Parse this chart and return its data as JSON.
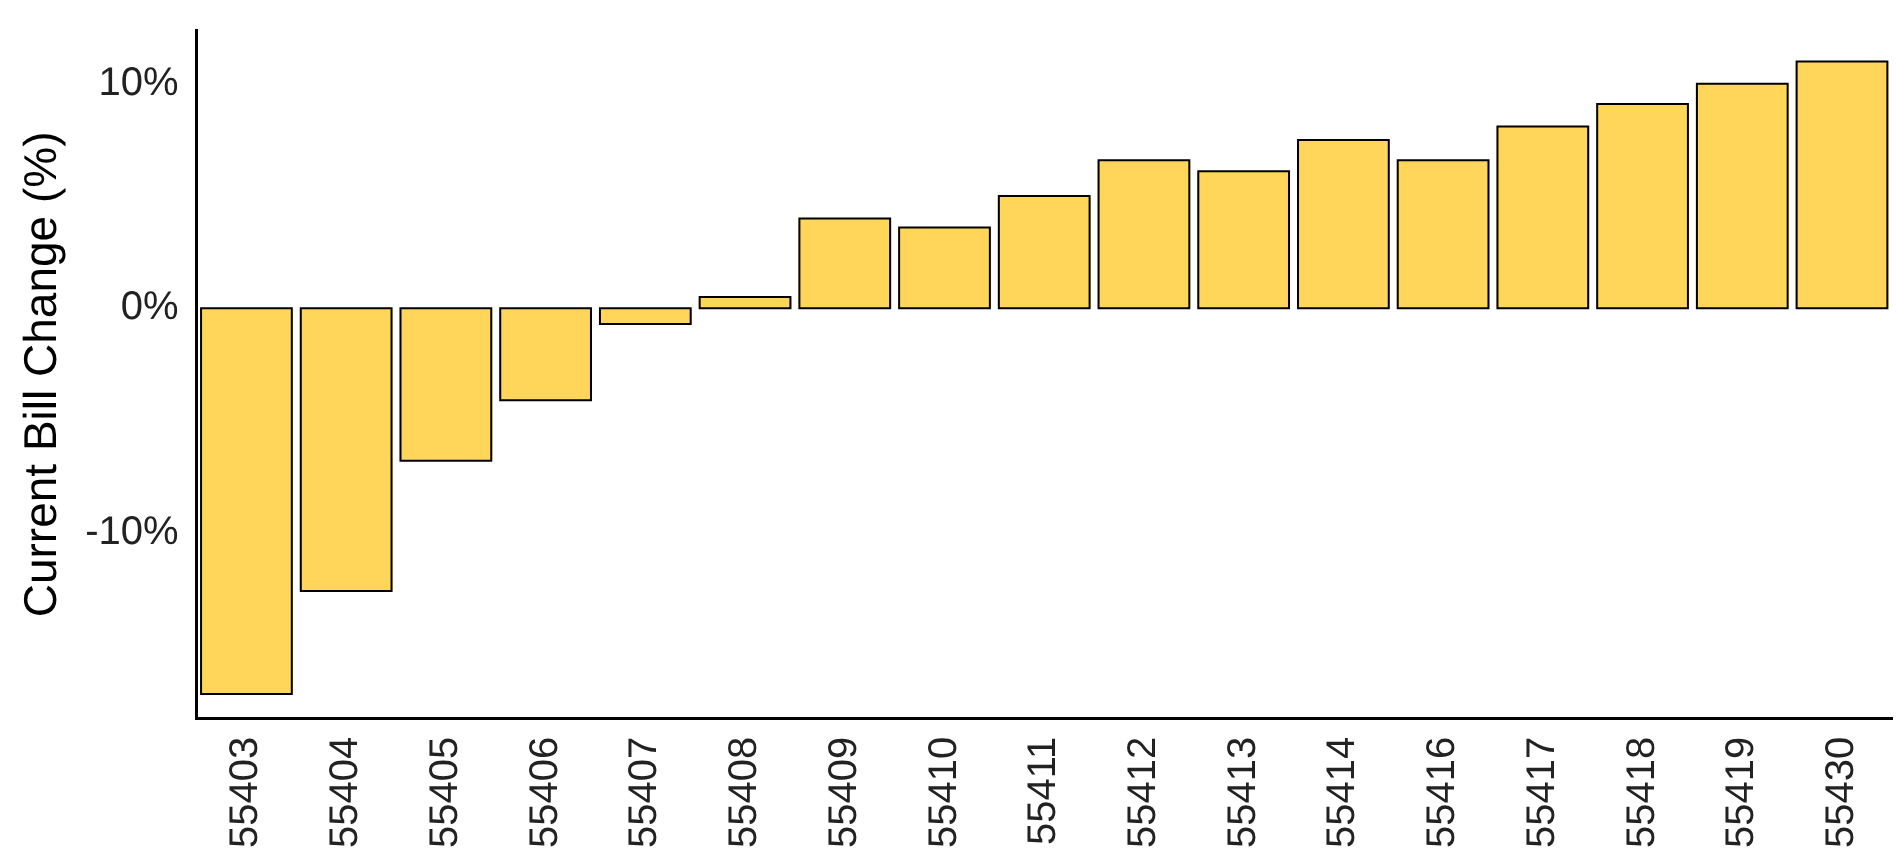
{
  "chart_data": {
    "type": "bar",
    "ylabel": "Current Bill Change (%)",
    "categories": [
      "55403",
      "55404",
      "55405",
      "55406",
      "55407",
      "55408",
      "55409",
      "55410",
      "55411",
      "55412",
      "55413",
      "55414",
      "55416",
      "55417",
      "55418",
      "55419",
      "55430"
    ],
    "values": [
      -17.2,
      -12.6,
      -6.8,
      -4.1,
      -0.7,
      0.5,
      4.0,
      3.6,
      5.0,
      6.6,
      6.1,
      7.5,
      6.6,
      8.1,
      9.1,
      10.0,
      11.0
    ],
    "color": "#ffd55a",
    "ylim": [
      -18.3,
      12.4
    ],
    "yticks": [
      {
        "value": -10,
        "label": "-10%"
      },
      {
        "value": 0,
        "label": "0%"
      },
      {
        "value": 10,
        "label": "10%"
      }
    ],
    "grid": false,
    "legend": false
  }
}
